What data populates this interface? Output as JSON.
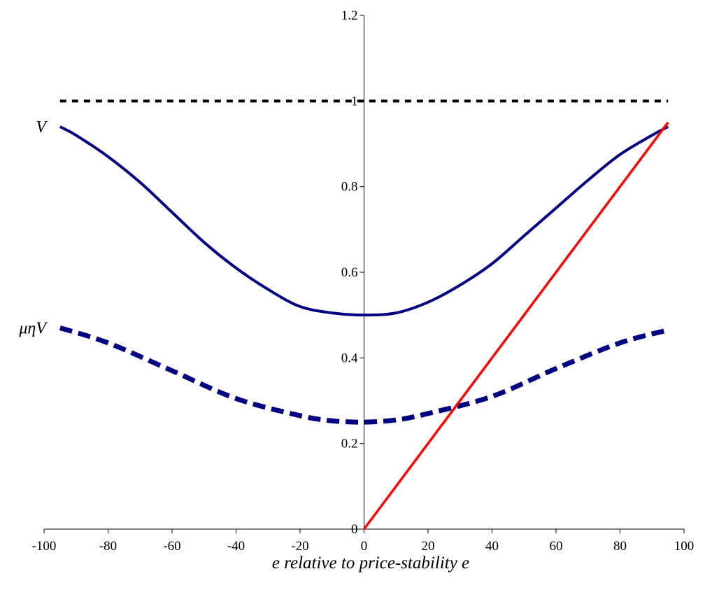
{
  "chart_data": {
    "type": "line",
    "title": "",
    "xlabel": "e relative to price-stability e",
    "ylabel": "",
    "xlim": [
      -100,
      100
    ],
    "ylim": [
      0,
      1.2
    ],
    "x_ticks": [
      -100,
      -80,
      -60,
      -40,
      -20,
      0,
      20,
      40,
      60,
      80,
      100
    ],
    "y_ticks": [
      0,
      0.2,
      0.4,
      0.6,
      0.8,
      1,
      1.2
    ],
    "x_tick_labels": [
      "-100",
      "-80",
      "-60",
      "-40",
      "-20",
      "0",
      "20",
      "40",
      "60",
      "80",
      "100"
    ],
    "y_tick_labels": [
      "0",
      "0.2",
      "0.4",
      "0.6",
      "0.8",
      "1",
      "1.2"
    ],
    "grid": false,
    "legend": "none",
    "series": [
      {
        "label": "",
        "style": "dashed",
        "color": "#000000",
        "x": [
          -95,
          95
        ],
        "y": [
          1.0,
          1.0
        ]
      },
      {
        "label": "V",
        "style": "solid",
        "color": "#000080",
        "x": [
          -95,
          -90,
          -80,
          -70,
          -60,
          -50,
          -40,
          -30,
          -20,
          -10,
          0,
          10,
          20,
          30,
          40,
          50,
          60,
          70,
          80,
          90,
          95
        ],
        "y": [
          0.94,
          0.92,
          0.87,
          0.81,
          0.74,
          0.67,
          0.61,
          0.56,
          0.52,
          0.505,
          0.5,
          0.505,
          0.53,
          0.57,
          0.62,
          0.685,
          0.75,
          0.815,
          0.875,
          0.92,
          0.94
        ]
      },
      {
        "label": "μηV",
        "style": "dashed",
        "color": "#000080",
        "x": [
          -95,
          -80,
          -60,
          -40,
          -20,
          -10,
          0,
          10,
          20,
          40,
          60,
          80,
          95
        ],
        "y": [
          0.47,
          0.435,
          0.37,
          0.305,
          0.265,
          0.253,
          0.25,
          0.255,
          0.27,
          0.31,
          0.375,
          0.435,
          0.465
        ]
      },
      {
        "label": "",
        "style": "solid",
        "color": "#ff0000",
        "x": [
          0,
          95
        ],
        "y": [
          0,
          0.95
        ]
      }
    ]
  }
}
